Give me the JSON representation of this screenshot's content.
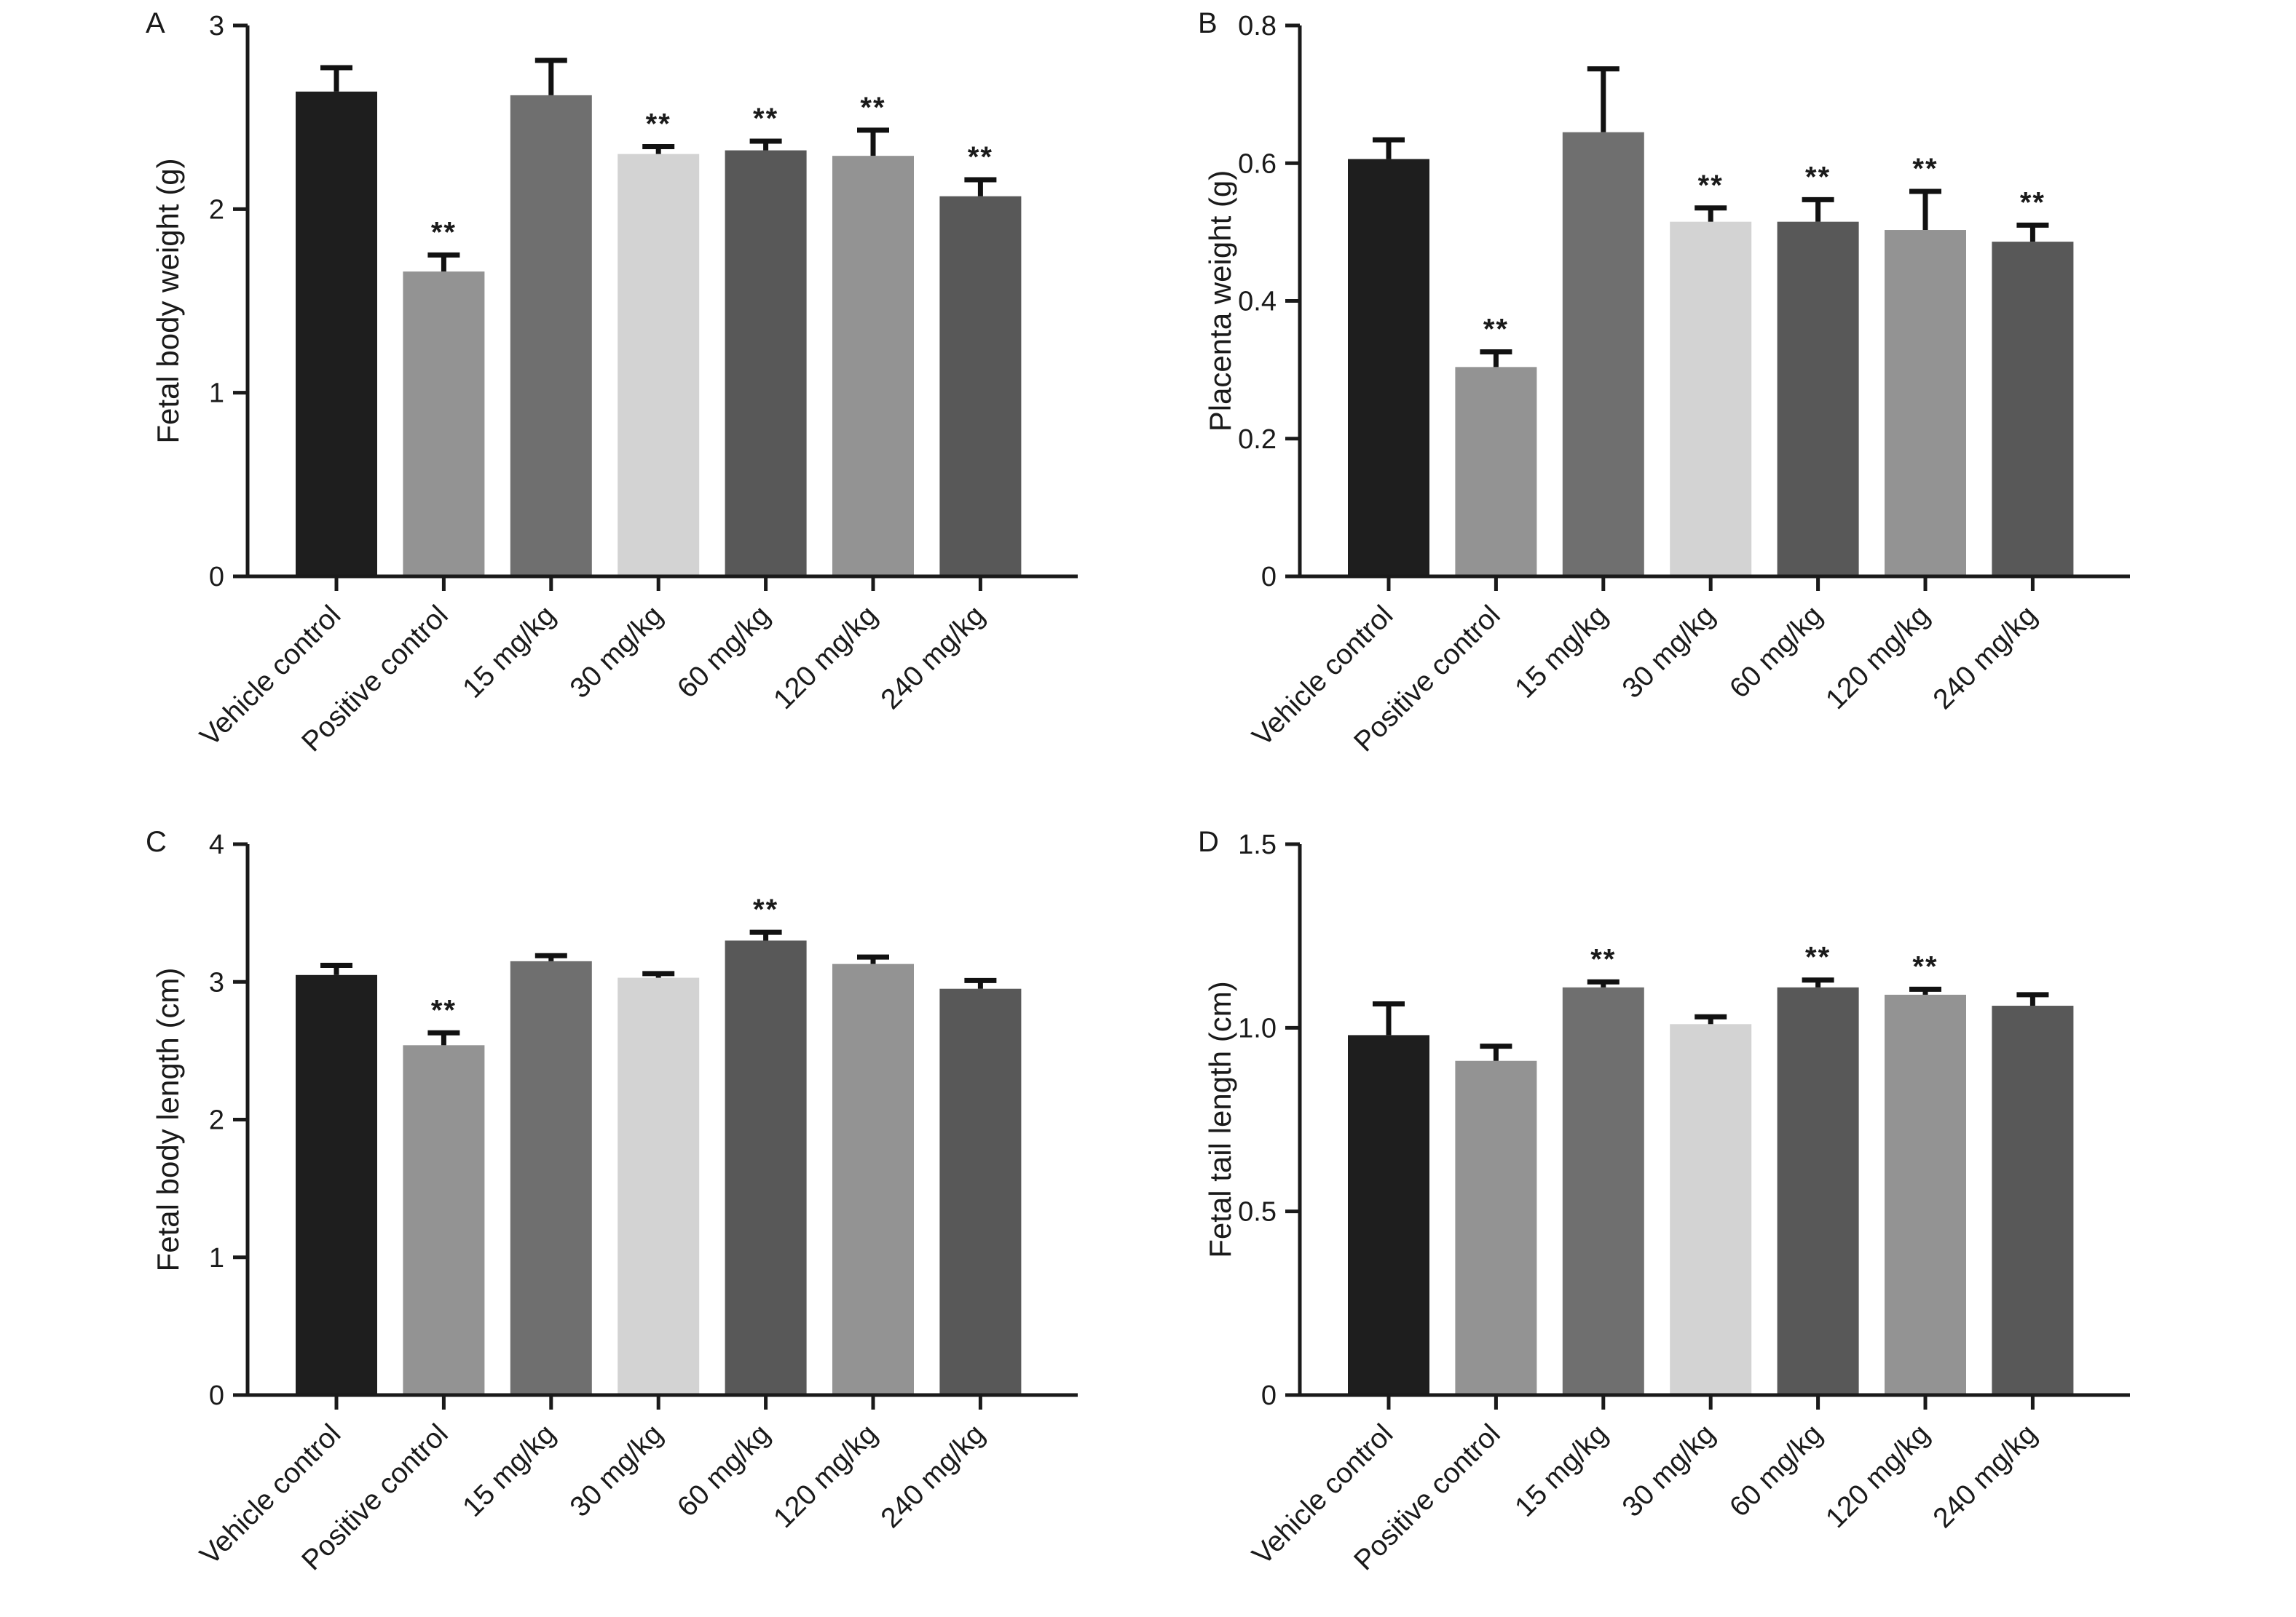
{
  "chart_data": [
    {
      "panel": "A",
      "type": "bar",
      "ylabel": "Fetal body weight (g)",
      "ylim": [
        0,
        3
      ],
      "yticks": [
        0,
        1,
        2,
        3
      ],
      "ytick_labels": [
        "0",
        "1",
        "2",
        "3"
      ],
      "categories": [
        "Vehicle control",
        "Positive control",
        "15 mg/kg",
        "30 mg/kg",
        "60 mg/kg",
        "120 mg/kg",
        "240 mg/kg"
      ],
      "values": [
        2.64,
        1.66,
        2.62,
        2.3,
        2.32,
        2.29,
        2.07
      ],
      "errors": [
        0.13,
        0.09,
        0.19,
        0.04,
        0.05,
        0.14,
        0.09
      ],
      "significance": [
        "",
        "**",
        "",
        "**",
        "**",
        "**",
        "**"
      ],
      "colors": [
        "#1e1e1e",
        "#939393",
        "#6f6f6f",
        "#d3d3d3",
        "#585858",
        "#939393",
        "#585858"
      ]
    },
    {
      "panel": "B",
      "type": "bar",
      "ylabel": "Placenta weight (g)",
      "ylim": [
        0,
        0.8
      ],
      "yticks": [
        0,
        0.2,
        0.4,
        0.6,
        0.8
      ],
      "ytick_labels": [
        "0",
        "0.2",
        "0.4",
        "0.6",
        "0.8"
      ],
      "categories": [
        "Vehicle control",
        "Positive control",
        "15 mg/kg",
        "30 mg/kg",
        "60 mg/kg",
        "120 mg/kg",
        "240 mg/kg"
      ],
      "values": [
        0.606,
        0.304,
        0.645,
        0.515,
        0.515,
        0.503,
        0.486
      ],
      "errors": [
        0.028,
        0.022,
        0.092,
        0.02,
        0.032,
        0.056,
        0.024
      ],
      "significance": [
        "",
        "**",
        "",
        "**",
        "**",
        "**",
        "**"
      ],
      "colors": [
        "#1e1e1e",
        "#939393",
        "#6f6f6f",
        "#d3d3d3",
        "#585858",
        "#939393",
        "#585858"
      ]
    },
    {
      "panel": "C",
      "type": "bar",
      "ylabel": "Fetal body length (cm)",
      "ylim": [
        0,
        4
      ],
      "yticks": [
        0,
        1,
        2,
        3,
        4
      ],
      "ytick_labels": [
        "0",
        "1",
        "2",
        "3",
        "4"
      ],
      "categories": [
        "Vehicle control",
        "Positive control",
        "15 mg/kg",
        "30 mg/kg",
        "60 mg/kg",
        "120 mg/kg",
        "240 mg/kg"
      ],
      "values": [
        3.05,
        2.54,
        3.15,
        3.03,
        3.3,
        3.13,
        2.95
      ],
      "errors": [
        0.07,
        0.09,
        0.04,
        0.03,
        0.06,
        0.05,
        0.06
      ],
      "significance": [
        "",
        "**",
        "",
        "",
        "**",
        "",
        ""
      ],
      "colors": [
        "#1e1e1e",
        "#939393",
        "#6f6f6f",
        "#d3d3d3",
        "#585858",
        "#939393",
        "#585858"
      ]
    },
    {
      "panel": "D",
      "type": "bar",
      "ylabel": "Fetal tail length (cm)",
      "ylim": [
        0,
        1.5
      ],
      "yticks": [
        0,
        0.5,
        1.0,
        1.5
      ],
      "ytick_labels": [
        "0",
        "0.5",
        "1.0",
        "1.5"
      ],
      "categories": [
        "Vehicle control",
        "Positive control",
        "15 mg/kg",
        "30 mg/kg",
        "60 mg/kg",
        "120 mg/kg",
        "240 mg/kg"
      ],
      "values": [
        0.98,
        0.91,
        1.11,
        1.01,
        1.11,
        1.09,
        1.06
      ],
      "errors": [
        0.085,
        0.04,
        0.015,
        0.02,
        0.02,
        0.015,
        0.03
      ],
      "significance": [
        "",
        "",
        "**",
        "",
        "**",
        "**",
        ""
      ],
      "colors": [
        "#1e1e1e",
        "#939393",
        "#6f6f6f",
        "#d3d3d3",
        "#585858",
        "#939393",
        "#585858"
      ]
    }
  ]
}
